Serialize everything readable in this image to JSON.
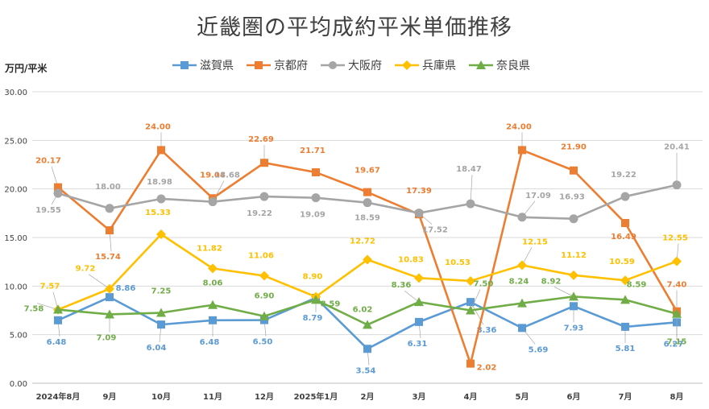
{
  "chart_data": {
    "type": "line",
    "title": "近畿圏の平均成約平米単価推移",
    "ylabel": "万円/平米",
    "xlabel": "",
    "ylim": [
      0,
      30
    ],
    "yticks": [
      "0.00",
      "5.00",
      "10.00",
      "15.00",
      "20.00",
      "25.00",
      "30.00"
    ],
    "grid": true,
    "legend_position": "top",
    "categories": [
      "2024年8月",
      "9月",
      "10月",
      "11月",
      "12月",
      "2025年1月",
      "2月",
      "3月",
      "4月",
      "5月",
      "6月",
      "7月",
      "8月"
    ],
    "series": [
      {
        "name": "滋賀県",
        "color": "#5b9bd5",
        "marker": "square",
        "values": [
          6.48,
          8.86,
          6.04,
          6.48,
          6.5,
          8.79,
          3.54,
          6.31,
          8.36,
          5.69,
          7.93,
          5.81,
          6.27
        ]
      },
      {
        "name": "京都府",
        "color": "#ed7d31",
        "marker": "square",
        "values": [
          20.17,
          15.74,
          24.0,
          19.04,
          22.69,
          21.71,
          19.67,
          17.39,
          2.02,
          24.0,
          21.9,
          16.49,
          7.4
        ]
      },
      {
        "name": "大阪府",
        "color": "#a5a5a5",
        "marker": "circle",
        "values": [
          19.55,
          18.0,
          18.98,
          18.68,
          19.22,
          19.09,
          18.59,
          17.52,
          18.47,
          17.09,
          16.93,
          19.22,
          20.41
        ]
      },
      {
        "name": "兵庫県",
        "color": "#ffc000",
        "marker": "diamond",
        "values": [
          7.57,
          9.72,
          15.33,
          11.82,
          11.06,
          8.9,
          12.72,
          10.83,
          10.53,
          12.15,
          11.12,
          10.59,
          12.55
        ]
      },
      {
        "name": "奈良県",
        "color": "#70ad47",
        "marker": "triangle",
        "values": [
          7.58,
          7.09,
          7.25,
          8.06,
          6.9,
          8.59,
          6.02,
          8.36,
          7.5,
          8.24,
          8.92,
          8.59,
          7.15
        ]
      }
    ]
  }
}
